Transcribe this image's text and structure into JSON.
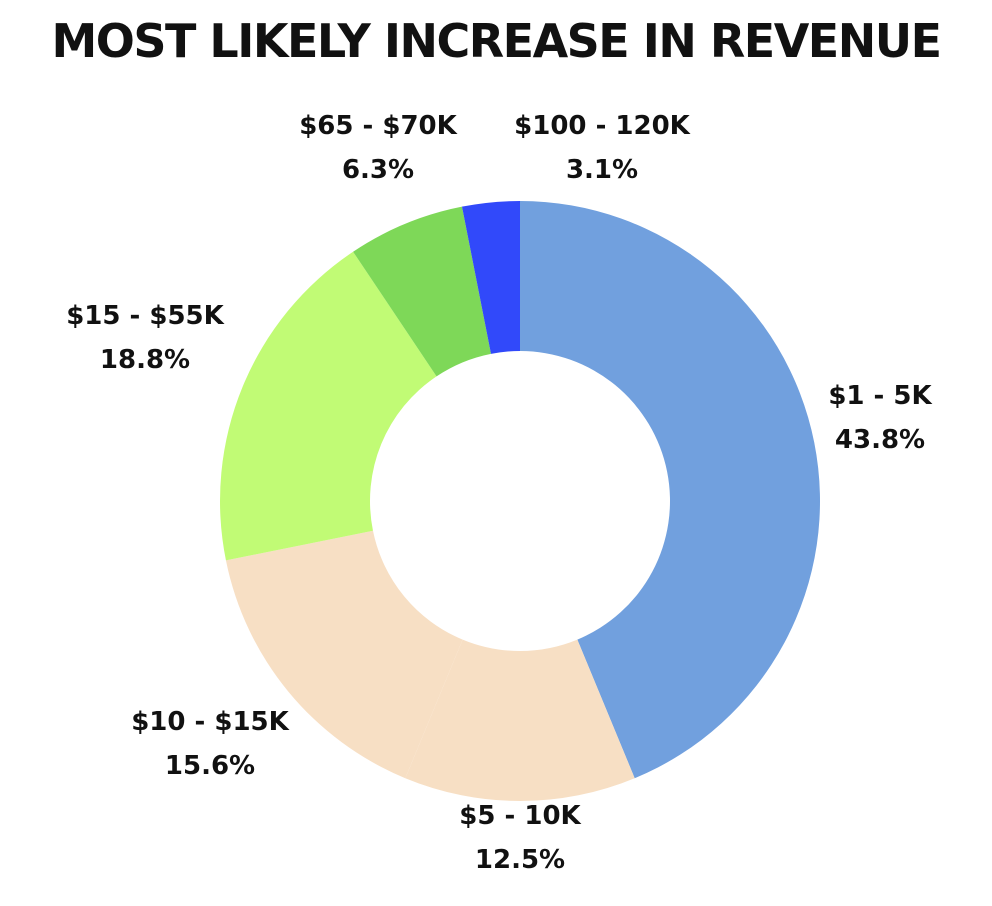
{
  "chart_data": {
    "type": "pie",
    "title": "MOST LIKELY INCREASE IN REVENUE",
    "categories": [
      "$1 - 5K",
      "$5 - 10K",
      "$10 - $15K",
      "$15 - $55K",
      "$65 - $70K",
      "$100 - 120K"
    ],
    "values": [
      43.8,
      12.5,
      15.6,
      18.8,
      6.3,
      3.1
    ],
    "value_labels": [
      "43.8%",
      "12.5%",
      "15.6%",
      "18.8%",
      "6.3%",
      "3.1%"
    ],
    "colors": [
      "#71A0DE",
      "#F7DFC4",
      "#F7DFC4",
      "#C1FB75",
      "#7ED858",
      "#3149FA"
    ],
    "donut": true,
    "legend": "none",
    "label_placement": "outside"
  }
}
